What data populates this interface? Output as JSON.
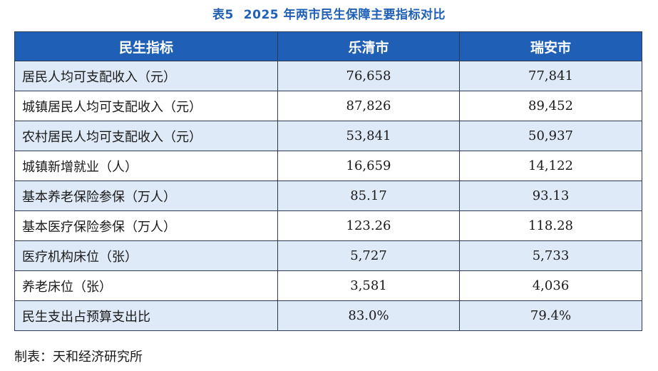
{
  "title": {
    "number": "表5",
    "text": "2025 年两市民生保障主要指标对比"
  },
  "table": {
    "headers": [
      "民生指标",
      "乐清市",
      "瑞安市"
    ],
    "rows": [
      {
        "label": "居民人均可支配收入（元）",
        "a": "76,658",
        "b": "77,841"
      },
      {
        "label": "城镇居民人均可支配收入（元）",
        "a": "87,826",
        "b": "89,452"
      },
      {
        "label": "农村居民人均可支配收入（元）",
        "a": "53,841",
        "b": "50,937"
      },
      {
        "label": "城镇新增就业（人）",
        "a": "16,659",
        "b": "14,122"
      },
      {
        "label": "基本养老保险参保（万人）",
        "a": "85.17",
        "b": "93.13"
      },
      {
        "label": "基本医疗保险参保（万人）",
        "a": "123.26",
        "b": "118.28"
      },
      {
        "label": "医疗机构床位（张）",
        "a": "5,727",
        "b": "5,733"
      },
      {
        "label": "养老床位（张）",
        "a": "3,581",
        "b": "4,036"
      },
      {
        "label": "民生支出占预算支出比",
        "a": "83.0%",
        "b": "79.4%"
      }
    ]
  },
  "source": "制表：天和经济研究所",
  "colors": {
    "header_bg": "#1f5fb5",
    "stripe_bg": "#deeaf8",
    "title_color": "#1f5fb5"
  }
}
